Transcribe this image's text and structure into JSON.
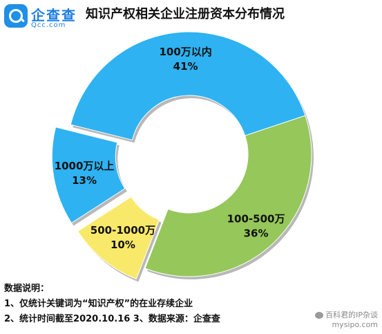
{
  "header": {
    "logo_text": "企查查",
    "logo_domain": "Qcc.com",
    "title": "知识产权相关企业注册资本分布情况"
  },
  "chart_data": {
    "type": "pie",
    "title": "知识产权相关企业注册资本分布情况",
    "donut": true,
    "categories": [
      "100万以内",
      "100-500万",
      "500-1000万",
      "1000万以上"
    ],
    "values": [
      41,
      36,
      10,
      13
    ],
    "labels": [
      "41%",
      "36%",
      "10%",
      "13%"
    ],
    "unit": "%",
    "colors": [
      "#2eb2f2",
      "#95c75a",
      "#f9e96a",
      "#2eb2f2"
    ]
  },
  "notes": {
    "heading": "数据说明：",
    "line1": "1、仅统计关键词为“知识产权”的在业存续企业",
    "line2": "2、统计时间截至2020.10.16  3、数据来源：企查查"
  },
  "watermark": {
    "text": "百科君的IP杂谈",
    "site": "mysipo.com"
  }
}
